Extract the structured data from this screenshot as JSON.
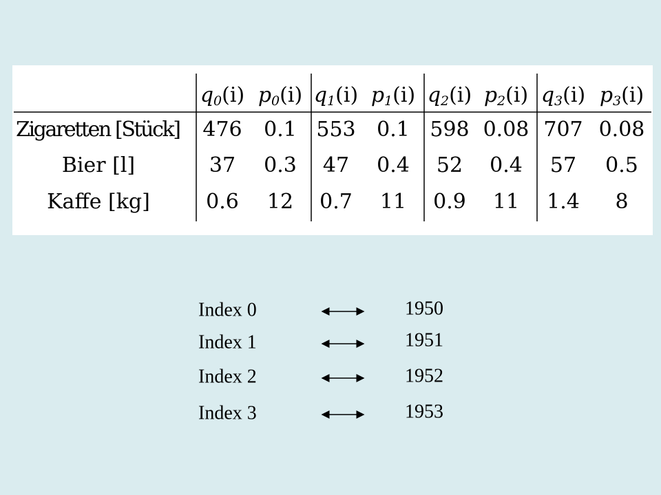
{
  "table": {
    "header": [
      {
        "symbol": "q",
        "index": "0",
        "arg": "(i)"
      },
      {
        "symbol": "p",
        "index": "0",
        "arg": "(i)"
      },
      {
        "symbol": "q",
        "index": "1",
        "arg": "(i)"
      },
      {
        "symbol": "p",
        "index": "1",
        "arg": "(i)"
      },
      {
        "symbol": "q",
        "index": "2",
        "arg": "(i)"
      },
      {
        "symbol": "p",
        "index": "2",
        "arg": "(i)"
      },
      {
        "symbol": "q",
        "index": "3",
        "arg": "(i)"
      },
      {
        "symbol": "p",
        "index": "3",
        "arg": "(i)"
      }
    ],
    "rows": [
      {
        "label": "Zigaretten [Stück]",
        "cells": [
          476,
          0.1,
          553,
          0.1,
          598,
          0.08,
          707,
          0.08
        ]
      },
      {
        "label": "Bier [l]",
        "cells": [
          37,
          0.3,
          47,
          0.4,
          52,
          0.4,
          57,
          0.5
        ]
      },
      {
        "label": "Kaffe [kg]",
        "cells": [
          0.6,
          12,
          0.7,
          11,
          0.9,
          11,
          1.4,
          8
        ]
      }
    ]
  },
  "mapping": [
    {
      "index": "Index 0",
      "year": "1950"
    },
    {
      "index": "Index 1",
      "year": "1951"
    },
    {
      "index": "Index 2",
      "year": "1952"
    },
    {
      "index": "Index 3",
      "year": "1953"
    }
  ]
}
